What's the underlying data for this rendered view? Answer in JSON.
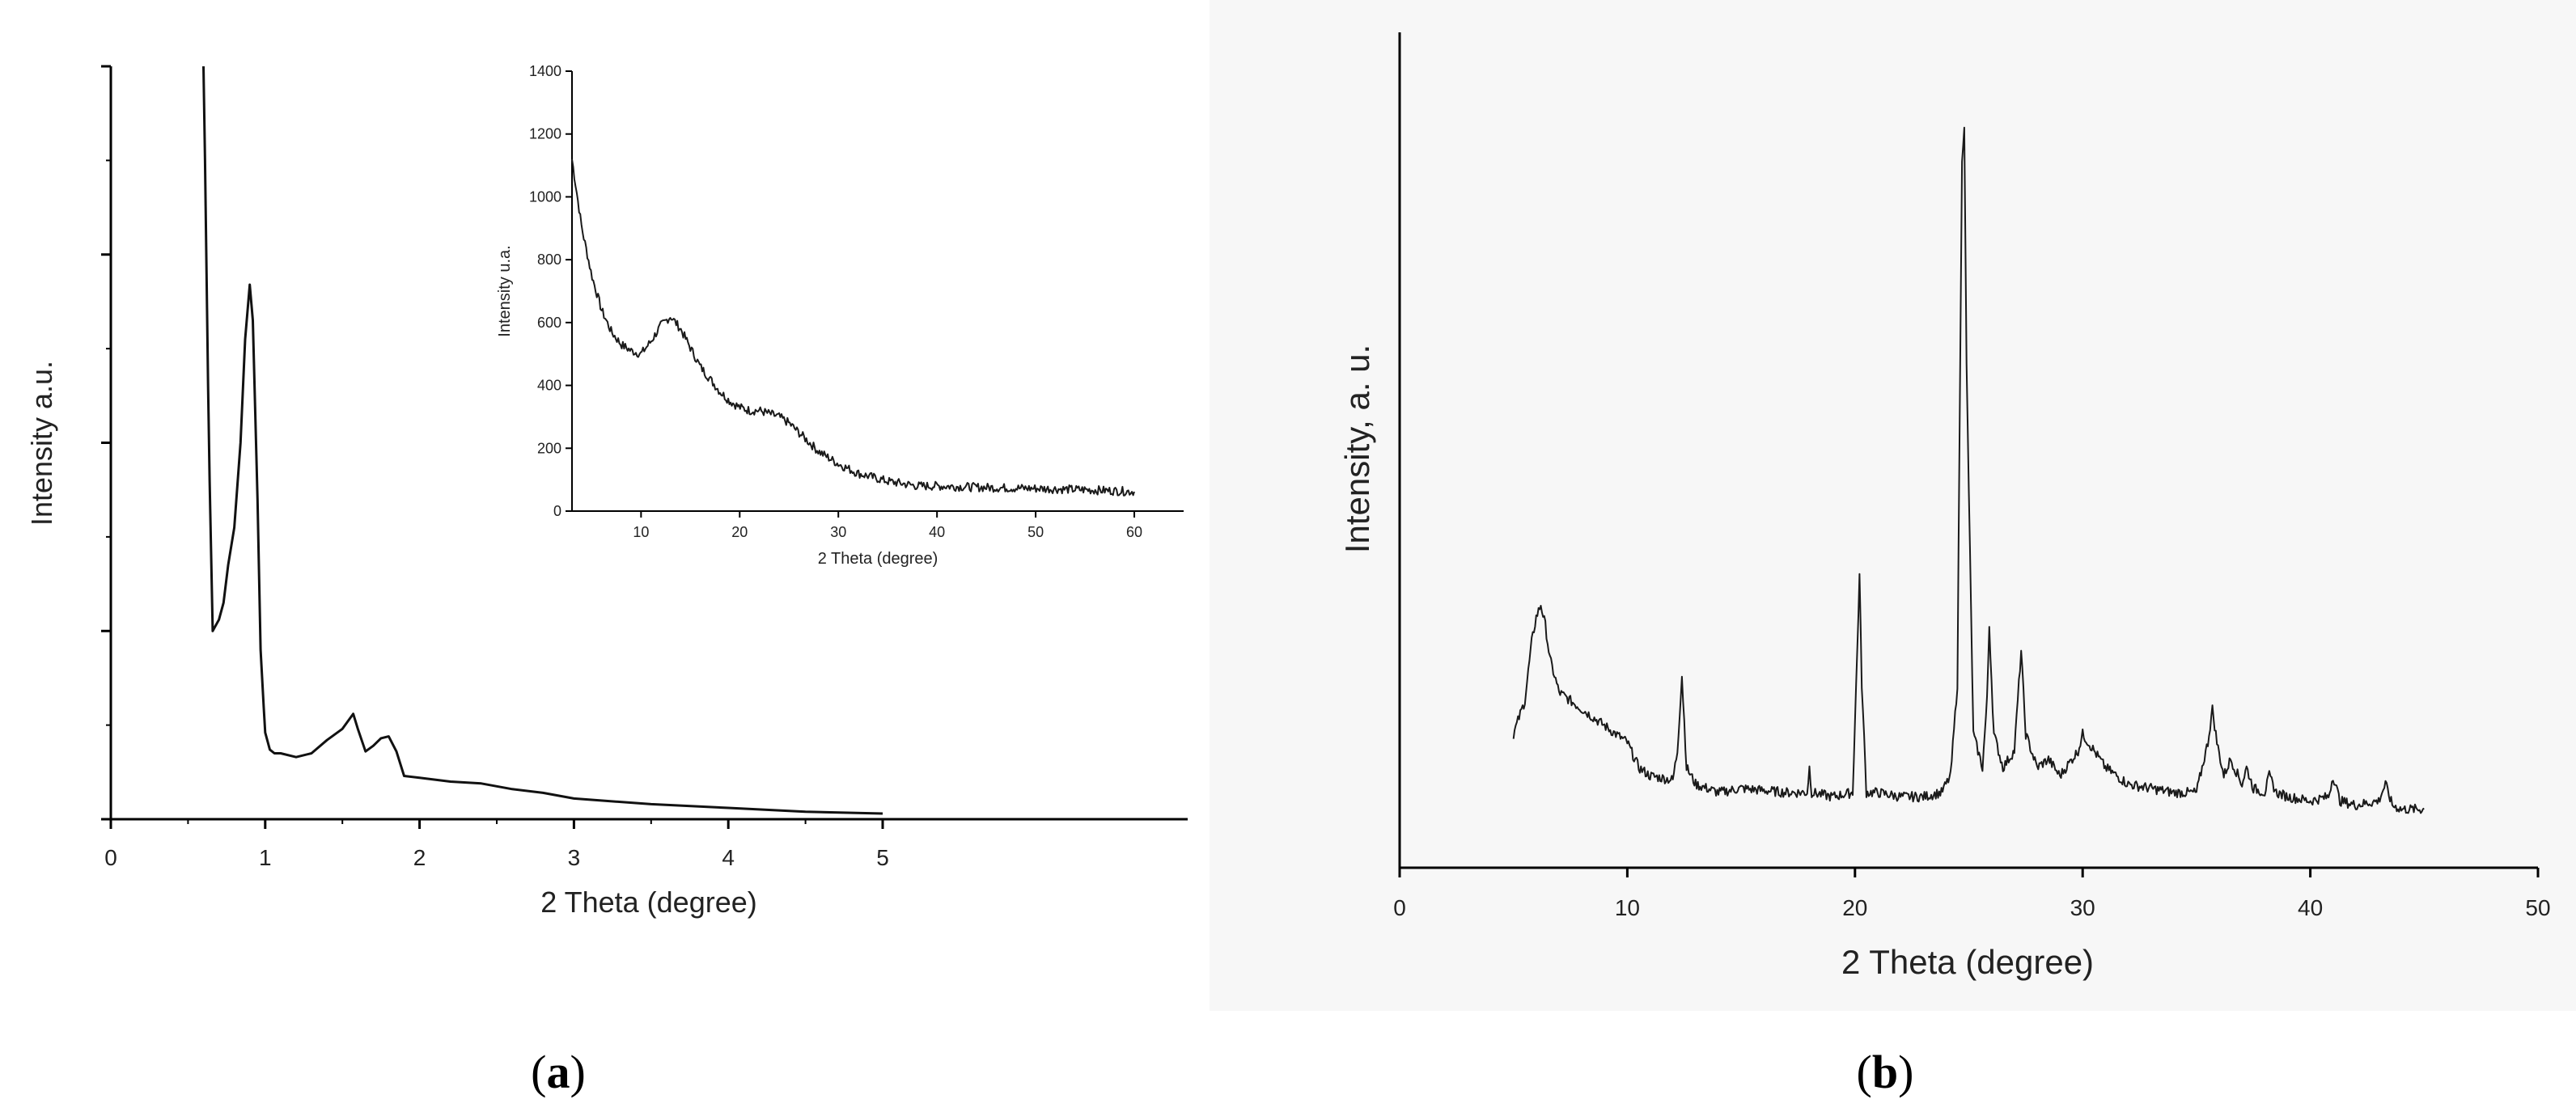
{
  "panels": {
    "a": {
      "label_open": "(",
      "label_letter": "a",
      "label_close": ")"
    },
    "b": {
      "label_open": "(",
      "label_letter": "b",
      "label_close": ")"
    }
  },
  "chart_data": [
    {
      "id": "a-main",
      "type": "line",
      "xlabel": "2 Theta (degree)",
      "ylabel": "Intensity a.u.",
      "xlim": [
        0,
        5.5
      ],
      "ylim": [
        0,
        4
      ],
      "xticks": [
        "0",
        "1",
        "2",
        "3",
        "4",
        "5"
      ],
      "yticks_labeled": false,
      "series": [
        {
          "x": [
            0.6,
            0.61,
            0.62,
            0.63,
            0.64,
            0.66,
            0.68,
            0.7,
            0.73,
            0.76,
            0.8,
            0.84,
            0.87,
            0.9,
            0.92,
            0.95,
            0.97,
            0.99,
            1.0,
            1.03,
            1.06,
            1.1,
            1.2,
            1.3,
            1.4,
            1.5,
            1.57,
            1.6,
            1.65,
            1.7,
            1.75,
            1.8,
            1.85,
            1.9,
            2.0,
            2.2,
            2.4,
            2.6,
            2.8,
            3.0,
            3.5,
            4.0,
            4.5,
            5.0
          ],
          "y": [
            4.0,
            3.5,
            2.9,
            2.3,
            1.8,
            1.0,
            1.03,
            1.06,
            1.15,
            1.35,
            1.55,
            2.0,
            2.55,
            2.84,
            2.65,
            1.7,
            0.9,
            0.6,
            0.46,
            0.37,
            0.35,
            0.35,
            0.33,
            0.35,
            0.42,
            0.48,
            0.56,
            0.48,
            0.36,
            0.39,
            0.43,
            0.44,
            0.36,
            0.23,
            0.22,
            0.2,
            0.19,
            0.16,
            0.14,
            0.11,
            0.08,
            0.06,
            0.04,
            0.03
          ]
        }
      ]
    },
    {
      "id": "a-inset",
      "type": "line",
      "xlabel": "2 Theta (degree)",
      "ylabel": "Intensity u.a.",
      "xlim": [
        3,
        65
      ],
      "ylim": [
        0,
        1400
      ],
      "xticks": [
        "10",
        "20",
        "30",
        "40",
        "50",
        "60"
      ],
      "yticks": [
        "0",
        "200",
        "400",
        "600",
        "800",
        "1000",
        "1200",
        "1400"
      ],
      "series": [
        {
          "x": [
            3,
            4,
            5,
            6,
            7,
            8,
            9,
            10,
            11,
            12,
            13,
            14,
            15,
            16,
            17,
            18,
            19,
            20,
            21,
            22,
            23,
            24,
            25,
            26,
            27,
            28,
            30,
            32,
            35,
            38,
            40,
            45,
            50,
            55,
            60
          ],
          "y": [
            1120,
            900,
            750,
            640,
            570,
            530,
            510,
            500,
            540,
            590,
            620,
            580,
            520,
            460,
            420,
            380,
            350,
            330,
            320,
            320,
            310,
            300,
            280,
            250,
            220,
            190,
            150,
            120,
            95,
            80,
            80,
            75,
            72,
            68,
            62
          ]
        }
      ]
    },
    {
      "id": "b",
      "type": "line",
      "xlabel": "2 Theta (degree)",
      "ylabel": "Intensity, a. u.",
      "xlim": [
        0,
        50
      ],
      "ylim": [
        0,
        100
      ],
      "xticks": [
        "0",
        "10",
        "20",
        "30",
        "40",
        "50"
      ],
      "yticks_labeled": false,
      "series": [
        {
          "x": [
            5.0,
            5.5,
            5.8,
            6.0,
            6.2,
            6.4,
            6.6,
            7.0,
            7.5,
            8.0,
            9.0,
            10.0,
            10.5,
            11.0,
            12.0,
            12.2,
            12.4,
            12.6,
            13.0,
            14.0,
            15.0,
            17.0,
            17.9,
            18.0,
            18.1,
            19.0,
            19.9,
            20.1,
            20.2,
            20.3,
            20.5,
            21.0,
            22.0,
            23.0,
            23.8,
            24.2,
            24.5,
            24.7,
            24.8,
            24.9,
            25.2,
            25.6,
            25.8,
            25.9,
            26.1,
            26.5,
            27.0,
            27.2,
            27.3,
            27.5,
            28.0,
            28.5,
            29.0,
            29.8,
            30.0,
            30.5,
            31.0,
            31.5,
            32.0,
            33.0,
            34.0,
            35.0,
            35.5,
            35.7,
            35.9,
            36.2,
            36.5,
            37.0,
            37.2,
            37.5,
            38.0,
            38.2,
            38.5,
            39.0,
            40.0,
            40.8,
            41.0,
            41.3,
            42.0,
            43.0,
            43.3,
            43.6,
            44.0,
            45.0
          ],
          "y": [
            16,
            20,
            27,
            30,
            31.5,
            29,
            25,
            21,
            20,
            19,
            17,
            15,
            12,
            11,
            10.5,
            14,
            23,
            12,
            10,
            9,
            9.5,
            9,
            9,
            12,
            9,
            8.5,
            9,
            26,
            35,
            22,
            9,
            9,
            8.5,
            8.5,
            9,
            11,
            22,
            85,
            89,
            60,
            16,
            12,
            20,
            29,
            16,
            12,
            14,
            22,
            26,
            16,
            12,
            13,
            11,
            14,
            16,
            14,
            12,
            11,
            10,
            9.5,
            9,
            9,
            15,
            19,
            15,
            11,
            13,
            10,
            12,
            9.5,
            9,
            11,
            9,
            8.5,
            8,
            8.5,
            11,
            8,
            7.5,
            8,
            10,
            7.5,
            7,
            7
          ]
        }
      ]
    }
  ]
}
